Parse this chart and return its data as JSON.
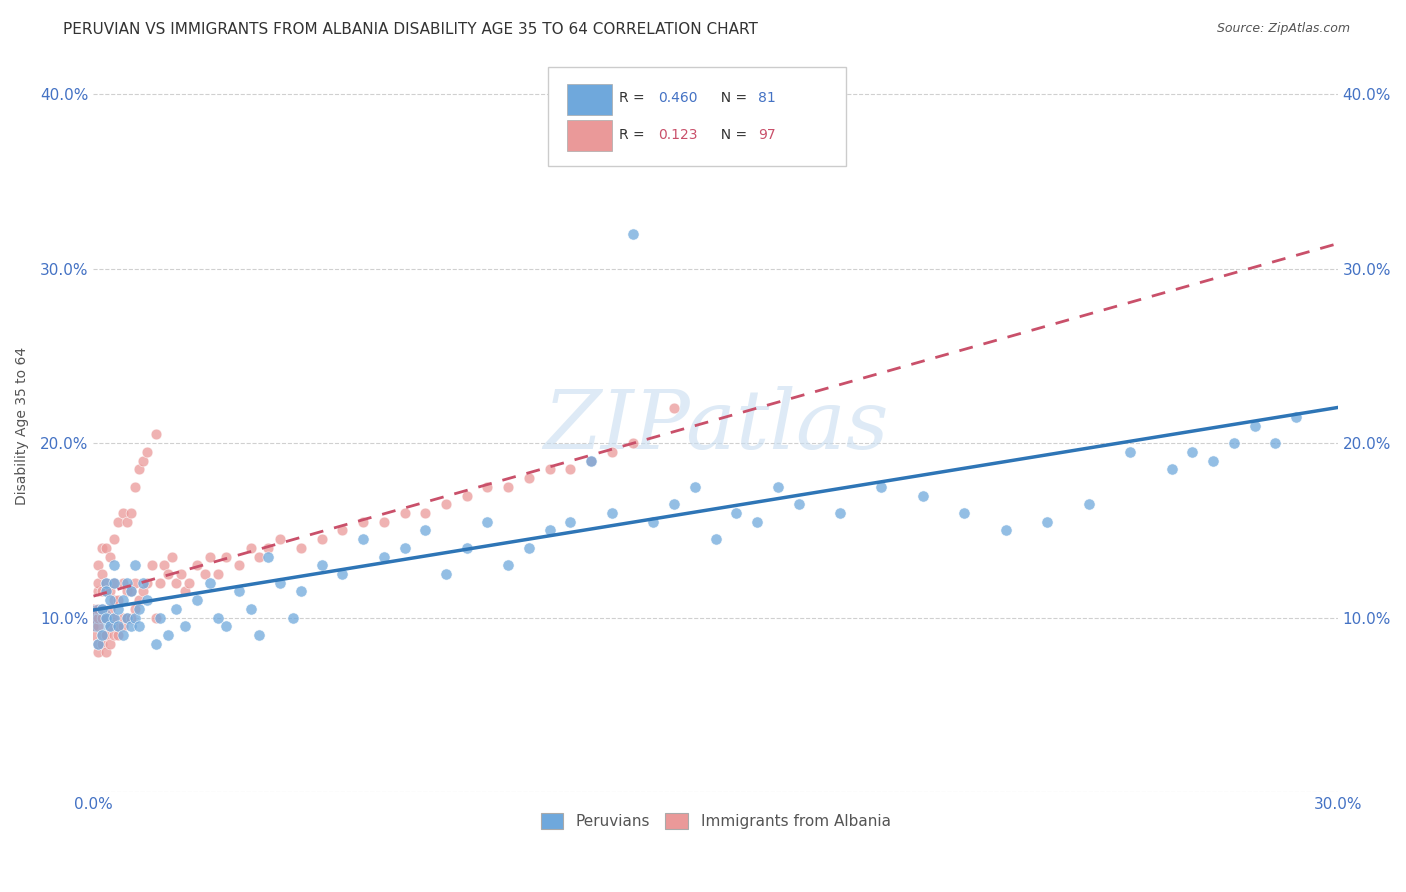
{
  "title": "PERUVIAN VS IMMIGRANTS FROM ALBANIA DISABILITY AGE 35 TO 64 CORRELATION CHART",
  "source": "Source: ZipAtlas.com",
  "ylabel": "Disability Age 35 to 64",
  "xlim": [
    0.0,
    0.3
  ],
  "ylim": [
    0.0,
    0.42
  ],
  "xtick_positions": [
    0.0,
    0.3
  ],
  "xtick_labels": [
    "0.0%",
    "30.0%"
  ],
  "ytick_positions": [
    0.0,
    0.1,
    0.2,
    0.3,
    0.4
  ],
  "ytick_labels": [
    "",
    "10.0%",
    "20.0%",
    "30.0%",
    "40.0%"
  ],
  "peruvian_color": "#6fa8dc",
  "albania_color": "#ea9999",
  "peruvian_line_color": "#2e75b6",
  "albania_line_color": "#c9506a",
  "peruvian_R": 0.46,
  "peruvian_N": 81,
  "albania_R": 0.123,
  "albania_N": 97,
  "grid_color": "#d0d0d0",
  "background_color": "#ffffff",
  "watermark": "ZIPatlas",
  "legend_labels": [
    "Peruvians",
    "Immigrants from Albania"
  ],
  "title_fontsize": 11,
  "axis_label_fontsize": 10,
  "tick_fontsize": 11,
  "peruvian_x": [
    0.001,
    0.002,
    0.002,
    0.003,
    0.003,
    0.003,
    0.004,
    0.004,
    0.005,
    0.005,
    0.005,
    0.006,
    0.006,
    0.007,
    0.007,
    0.008,
    0.008,
    0.009,
    0.009,
    0.01,
    0.01,
    0.011,
    0.011,
    0.012,
    0.013,
    0.015,
    0.016,
    0.018,
    0.02,
    0.022,
    0.025,
    0.028,
    0.03,
    0.032,
    0.035,
    0.038,
    0.04,
    0.042,
    0.045,
    0.048,
    0.05,
    0.055,
    0.06,
    0.065,
    0.07,
    0.075,
    0.08,
    0.085,
    0.09,
    0.095,
    0.1,
    0.105,
    0.11,
    0.115,
    0.12,
    0.125,
    0.13,
    0.135,
    0.14,
    0.145,
    0.15,
    0.155,
    0.16,
    0.165,
    0.17,
    0.175,
    0.18,
    0.19,
    0.2,
    0.21,
    0.22,
    0.23,
    0.24,
    0.25,
    0.26,
    0.265,
    0.27,
    0.275,
    0.28,
    0.285,
    0.29
  ],
  "peruvian_y": [
    0.085,
    0.09,
    0.105,
    0.1,
    0.12,
    0.115,
    0.095,
    0.11,
    0.1,
    0.13,
    0.12,
    0.095,
    0.105,
    0.11,
    0.09,
    0.1,
    0.12,
    0.095,
    0.115,
    0.1,
    0.13,
    0.105,
    0.095,
    0.12,
    0.11,
    0.085,
    0.1,
    0.09,
    0.105,
    0.095,
    0.11,
    0.12,
    0.1,
    0.095,
    0.115,
    0.105,
    0.09,
    0.135,
    0.12,
    0.1,
    0.115,
    0.13,
    0.125,
    0.145,
    0.135,
    0.14,
    0.15,
    0.125,
    0.14,
    0.155,
    0.13,
    0.14,
    0.15,
    0.155,
    0.19,
    0.16,
    0.32,
    0.155,
    0.165,
    0.175,
    0.145,
    0.16,
    0.155,
    0.175,
    0.165,
    0.385,
    0.16,
    0.175,
    0.17,
    0.16,
    0.15,
    0.155,
    0.165,
    0.195,
    0.185,
    0.195,
    0.19,
    0.2,
    0.21,
    0.2,
    0.215
  ],
  "albania_x": [
    0.0,
    0.0,
    0.0,
    0.0,
    0.001,
    0.001,
    0.001,
    0.001,
    0.001,
    0.001,
    0.001,
    0.001,
    0.002,
    0.002,
    0.002,
    0.002,
    0.002,
    0.002,
    0.002,
    0.003,
    0.003,
    0.003,
    0.003,
    0.003,
    0.003,
    0.004,
    0.004,
    0.004,
    0.004,
    0.004,
    0.005,
    0.005,
    0.005,
    0.005,
    0.005,
    0.006,
    0.006,
    0.006,
    0.006,
    0.007,
    0.007,
    0.007,
    0.007,
    0.008,
    0.008,
    0.008,
    0.009,
    0.009,
    0.009,
    0.01,
    0.01,
    0.01,
    0.011,
    0.011,
    0.012,
    0.012,
    0.013,
    0.013,
    0.014,
    0.015,
    0.015,
    0.016,
    0.017,
    0.018,
    0.019,
    0.02,
    0.021,
    0.022,
    0.023,
    0.025,
    0.027,
    0.028,
    0.03,
    0.032,
    0.035,
    0.038,
    0.04,
    0.042,
    0.045,
    0.05,
    0.055,
    0.06,
    0.065,
    0.07,
    0.075,
    0.08,
    0.085,
    0.09,
    0.095,
    0.1,
    0.105,
    0.11,
    0.115,
    0.12,
    0.125,
    0.13,
    0.14
  ],
  "albania_y": [
    0.09,
    0.095,
    0.1,
    0.105,
    0.08,
    0.085,
    0.095,
    0.1,
    0.105,
    0.115,
    0.12,
    0.13,
    0.085,
    0.09,
    0.1,
    0.105,
    0.115,
    0.125,
    0.14,
    0.08,
    0.09,
    0.1,
    0.115,
    0.12,
    0.14,
    0.085,
    0.095,
    0.105,
    0.115,
    0.135,
    0.09,
    0.1,
    0.11,
    0.12,
    0.145,
    0.09,
    0.095,
    0.11,
    0.155,
    0.095,
    0.1,
    0.12,
    0.16,
    0.1,
    0.115,
    0.155,
    0.1,
    0.115,
    0.16,
    0.105,
    0.12,
    0.175,
    0.11,
    0.185,
    0.115,
    0.19,
    0.12,
    0.195,
    0.13,
    0.1,
    0.205,
    0.12,
    0.13,
    0.125,
    0.135,
    0.12,
    0.125,
    0.115,
    0.12,
    0.13,
    0.125,
    0.135,
    0.125,
    0.135,
    0.13,
    0.14,
    0.135,
    0.14,
    0.145,
    0.14,
    0.145,
    0.15,
    0.155,
    0.155,
    0.16,
    0.16,
    0.165,
    0.17,
    0.175,
    0.175,
    0.18,
    0.185,
    0.185,
    0.19,
    0.195,
    0.2,
    0.22
  ]
}
